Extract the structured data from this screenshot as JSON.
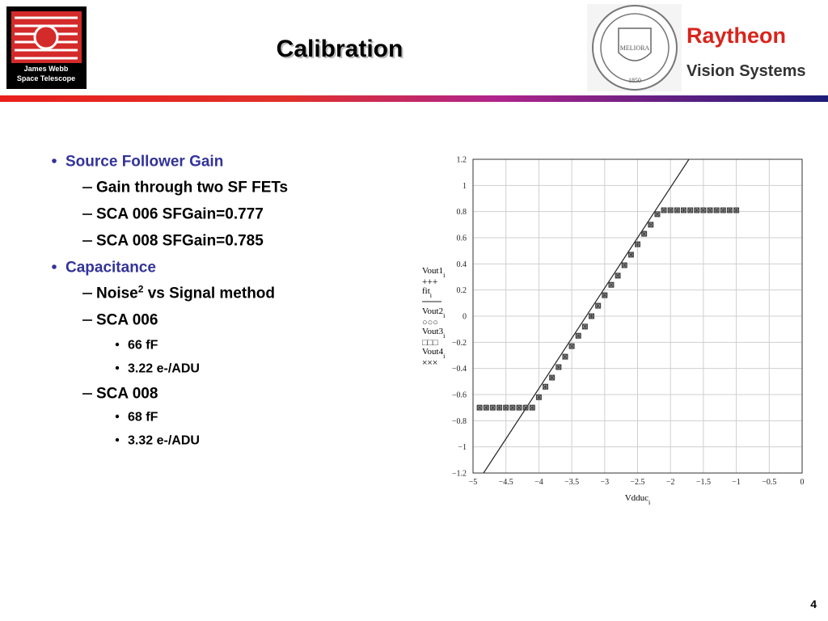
{
  "header": {
    "title": "Calibration",
    "logo_left": [
      "James Webb",
      "Space Telescope"
    ],
    "seal": {
      "motto": "MELIORA",
      "year": "1850"
    },
    "company": "Raytheon",
    "division": "Vision Systems"
  },
  "bullets": [
    {
      "level": 1,
      "text": "Source Follower Gain"
    },
    {
      "level": 2,
      "text": "Gain through two SF FETs"
    },
    {
      "level": 2,
      "text": "SCA 006 SFGain=0.777"
    },
    {
      "level": 2,
      "text": "SCA 008 SFGain=0.785"
    },
    {
      "level": 1,
      "text": "Capacitance"
    },
    {
      "level": 2,
      "text": "Noise",
      "sup": "2",
      "tail": " vs Signal method"
    },
    {
      "level": 2,
      "text": "SCA 006"
    },
    {
      "level": 3,
      "text": "66 fF"
    },
    {
      "level": 3,
      "text": "3.22 e-/ADU"
    },
    {
      "level": 2,
      "text": "SCA 008"
    },
    {
      "level": 3,
      "text": "68 fF"
    },
    {
      "level": 3,
      "text": "3.32 e-/ADU"
    }
  ],
  "page_number": "4",
  "chart_data": {
    "type": "scatter",
    "x": [
      -4.9,
      -4.8,
      -4.7,
      -4.6,
      -4.5,
      -4.4,
      -4.3,
      -4.2,
      -4.1,
      -4.0,
      -3.9,
      -3.8,
      -3.7,
      -3.6,
      -3.5,
      -3.4,
      -3.3,
      -3.2,
      -3.1,
      -3.0,
      -2.9,
      -2.8,
      -2.7,
      -2.6,
      -2.5,
      -2.4,
      -2.3,
      -2.2,
      -2.1,
      -2.0,
      -1.9,
      -1.8,
      -1.7,
      -1.6,
      -1.5,
      -1.4,
      -1.3,
      -1.2,
      -1.1,
      -1.0
    ],
    "series": [
      {
        "name": "Vout1",
        "sub": "i",
        "symbol": "+++",
        "values": [
          -0.7,
          -0.7,
          -0.7,
          -0.7,
          -0.7,
          -0.7,
          -0.7,
          -0.7,
          -0.7,
          -0.62,
          -0.54,
          -0.47,
          -0.39,
          -0.31,
          -0.23,
          -0.15,
          -0.08,
          0.0,
          0.08,
          0.16,
          0.24,
          0.31,
          0.39,
          0.47,
          0.55,
          0.63,
          0.7,
          0.78,
          0.81,
          0.81,
          0.81,
          0.81,
          0.81,
          0.81,
          0.81,
          0.81,
          0.81,
          0.81,
          0.81,
          0.81
        ]
      },
      {
        "name": "fit",
        "sub": "i",
        "x": [
          -4.84,
          -1.72
        ],
        "values": [
          -1.2,
          1.2
        ]
      },
      {
        "name": "Vout2",
        "sub": "i",
        "symbol": "○○○",
        "values": [
          -0.7,
          -0.7,
          -0.7,
          -0.7,
          -0.7,
          -0.7,
          -0.7,
          -0.7,
          -0.7,
          -0.62,
          -0.54,
          -0.47,
          -0.39,
          -0.31,
          -0.23,
          -0.15,
          -0.08,
          0.0,
          0.08,
          0.16,
          0.24,
          0.31,
          0.39,
          0.47,
          0.55,
          0.63,
          0.7,
          0.78,
          0.81,
          0.81,
          0.81,
          0.81,
          0.81,
          0.81,
          0.81,
          0.81,
          0.81,
          0.81,
          0.81,
          0.81
        ]
      },
      {
        "name": "Vout3",
        "sub": "i",
        "symbol": "□□□",
        "values": [
          -0.7,
          -0.7,
          -0.7,
          -0.7,
          -0.7,
          -0.7,
          -0.7,
          -0.7,
          -0.7,
          -0.62,
          -0.54,
          -0.47,
          -0.39,
          -0.31,
          -0.23,
          -0.15,
          -0.08,
          0.0,
          0.08,
          0.16,
          0.24,
          0.31,
          0.39,
          0.47,
          0.55,
          0.63,
          0.7,
          0.78,
          0.81,
          0.81,
          0.81,
          0.81,
          0.81,
          0.81,
          0.81,
          0.81,
          0.81,
          0.81,
          0.81,
          0.81
        ]
      },
      {
        "name": "Vout4",
        "sub": "i",
        "symbol": "×××",
        "values": [
          -0.7,
          -0.7,
          -0.7,
          -0.7,
          -0.7,
          -0.7,
          -0.7,
          -0.7,
          -0.7,
          -0.62,
          -0.54,
          -0.47,
          -0.39,
          -0.31,
          -0.23,
          -0.15,
          -0.08,
          0.0,
          0.08,
          0.16,
          0.24,
          0.31,
          0.39,
          0.47,
          0.55,
          0.63,
          0.7,
          0.78,
          0.81,
          0.81,
          0.81,
          0.81,
          0.81,
          0.81,
          0.81,
          0.81,
          0.81,
          0.81,
          0.81,
          0.81
        ]
      }
    ],
    "xlabel": {
      "text": "Vdduc",
      "sub": "i"
    },
    "xlim": [
      -5,
      0
    ],
    "xticks": [
      {
        "value": -5,
        "label": "−5"
      },
      {
        "value": -4.5,
        "label": "−4.5"
      },
      {
        "value": -4,
        "label": "−4"
      },
      {
        "value": -3.5,
        "label": "−3.5"
      },
      {
        "value": -3,
        "label": "−3"
      },
      {
        "value": -2.5,
        "label": "−2.5"
      },
      {
        "value": -2,
        "label": "−2"
      },
      {
        "value": -1.5,
        "label": "−1.5"
      },
      {
        "value": -1,
        "label": "−1"
      },
      {
        "value": -0.5,
        "label": "−0.5"
      },
      0
    ],
    "ylim": [
      -1.2,
      1.2
    ],
    "yticks": [
      {
        "value": -1.2,
        "label": "−1.2"
      },
      {
        "value": -1,
        "label": "−1"
      },
      {
        "value": -0.8,
        "label": "−0.8"
      },
      {
        "value": -0.6,
        "label": "−0.6"
      },
      {
        "value": -0.4,
        "label": "−0.4"
      },
      {
        "value": -0.2,
        "label": "−0.2"
      },
      0,
      0.2,
      0.4,
      0.6,
      0.8,
      1,
      1.2
    ],
    "grid": true,
    "marker_color": "#444444",
    "line_color": "#222222"
  }
}
